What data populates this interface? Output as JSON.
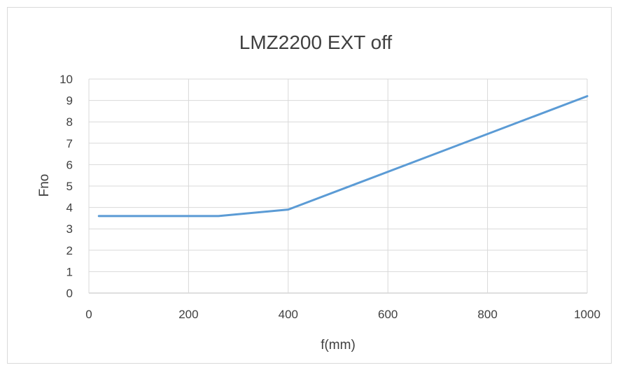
{
  "chart_data": {
    "type": "line",
    "title": "LMZ2200 EXT off",
    "xlabel": "f(mm)",
    "ylabel": "Fno",
    "xlim": [
      0,
      1000
    ],
    "ylim": [
      0,
      10
    ],
    "x_ticks": [
      "0",
      "200",
      "400",
      "600",
      "800",
      "1000"
    ],
    "y_ticks": [
      "0",
      "1",
      "2",
      "3",
      "4",
      "5",
      "6",
      "7",
      "8",
      "9",
      "10"
    ],
    "grid": true,
    "legend": "none",
    "series": [
      {
        "color": "#5b9bd5",
        "x": [
          20,
          260,
          400,
          1000
        ],
        "y": [
          3.6,
          3.6,
          3.9,
          9.2
        ]
      }
    ]
  }
}
